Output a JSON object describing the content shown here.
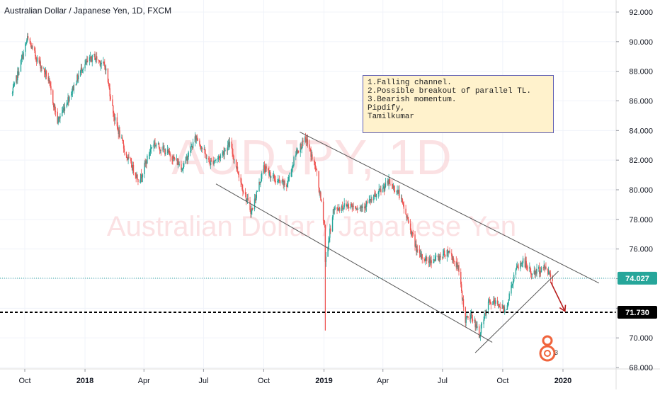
{
  "title": "Australian Dollar / Japanese Yen, 1D, FXCM",
  "watermark": {
    "symbol": "AUDJPY, 1D",
    "name": "Australian Dollar / Japanese Yen"
  },
  "note_lines": [
    "1.Falling channel.",
    "2.Possible breakout of parallel TL.",
    "3.Bearish momentum.",
    "",
    "Pipdify,",
    "Tamilkumar"
  ],
  "logo_badge": "3",
  "colors": {
    "up": "#26a69a",
    "down": "#ef5350",
    "current_line": "#26a69a",
    "level_line": "#000000",
    "trendline": "#555555",
    "arrow": "#b71c1c",
    "note_bg": "#fff2cc",
    "note_border": "#5f5fb4"
  },
  "chart_data": {
    "type": "candlestick",
    "title": "Australian Dollar / Japanese Yen, 1D, FXCM",
    "xlabel": "",
    "ylabel": "",
    "ylim": [
      68.0,
      93.0
    ],
    "y_ticks": [
      "92.000",
      "90.000",
      "88.000",
      "86.000",
      "84.000",
      "82.000",
      "80.000",
      "78.000",
      "76.000",
      "74.000",
      "72.000",
      "70.000",
      "68.000"
    ],
    "x_ticks": [
      {
        "label": "Oct",
        "date": "2017-10-01"
      },
      {
        "label": "2018",
        "date": "2018-01-01"
      },
      {
        "label": "Apr",
        "date": "2018-04-01"
      },
      {
        "label": "Jul",
        "date": "2018-07-01"
      },
      {
        "label": "Oct",
        "date": "2018-10-01"
      },
      {
        "label": "2019",
        "date": "2019-01-01"
      },
      {
        "label": "Apr",
        "date": "2019-04-01"
      },
      {
        "label": "Jul",
        "date": "2019-07-01"
      },
      {
        "label": "Oct",
        "date": "2019-10-01"
      },
      {
        "label": "2020",
        "date": "2020-01-01"
      }
    ],
    "x_range": [
      "2017-09-12",
      "2020-03-06"
    ],
    "price_path": [
      [
        "2017-09-12",
        86.5
      ],
      [
        "2017-09-25",
        88.6
      ],
      [
        "2017-10-05",
        90.2
      ],
      [
        "2017-10-20",
        88.8
      ],
      [
        "2017-11-05",
        87.6
      ],
      [
        "2017-11-20",
        84.6
      ],
      [
        "2017-12-10",
        86.5
      ],
      [
        "2017-12-28",
        88.3
      ],
      [
        "2018-01-15",
        89.0
      ],
      [
        "2018-02-01",
        88.3
      ],
      [
        "2018-02-15",
        84.8
      ],
      [
        "2018-03-05",
        82.3
      ],
      [
        "2018-03-25",
        80.6
      ],
      [
        "2018-04-15",
        83.2
      ],
      [
        "2018-05-10",
        82.4
      ],
      [
        "2018-05-30",
        81.5
      ],
      [
        "2018-06-20",
        83.6
      ],
      [
        "2018-07-10",
        81.8
      ],
      [
        "2018-07-25",
        82.2
      ],
      [
        "2018-08-10",
        83.1
      ],
      [
        "2018-09-01",
        79.8
      ],
      [
        "2018-09-12",
        78.5
      ],
      [
        "2018-10-01",
        81.5
      ],
      [
        "2018-10-20",
        80.6
      ],
      [
        "2018-11-05",
        80.3
      ],
      [
        "2018-11-20",
        82.6
      ],
      [
        "2018-12-05",
        83.4
      ],
      [
        "2018-12-20",
        81.3
      ],
      [
        "2019-01-02",
        77.6
      ],
      [
        "2019-01-03",
        75.1
      ],
      [
        "2019-01-15",
        78.6
      ],
      [
        "2019-02-05",
        79.0
      ],
      [
        "2019-02-25",
        78.8
      ],
      [
        "2019-03-15",
        79.3
      ],
      [
        "2019-04-10",
        80.5
      ],
      [
        "2019-04-25",
        79.8
      ],
      [
        "2019-05-10",
        77.8
      ],
      [
        "2019-05-25",
        75.6
      ],
      [
        "2019-06-10",
        75.2
      ],
      [
        "2019-06-25",
        75.4
      ],
      [
        "2019-07-10",
        75.9
      ],
      [
        "2019-07-25",
        74.7
      ],
      [
        "2019-08-05",
        71.2
      ],
      [
        "2019-08-15",
        71.5
      ],
      [
        "2019-08-26",
        70.2
      ],
      [
        "2019-09-10",
        72.4
      ],
      [
        "2019-09-25",
        72.3
      ],
      [
        "2019-10-05",
        71.8
      ],
      [
        "2019-10-20",
        74.5
      ],
      [
        "2019-11-01",
        75.2
      ],
      [
        "2019-11-15",
        74.3
      ],
      [
        "2019-12-05",
        74.8
      ],
      [
        "2019-12-16",
        74.03
      ]
    ],
    "current_price": "74.027",
    "level_price": "71.730",
    "channel": {
      "upper": [
        [
          "2018-11-25",
          83.9
        ],
        [
          "2020-02-25",
          73.7
        ]
      ],
      "lower": [
        [
          "2018-07-20",
          80.4
        ],
        [
          "2019-09-15",
          69.7
        ]
      ],
      "breakout_trendline": [
        [
          "2019-08-20",
          69.0
        ],
        [
          "2019-12-25",
          74.5
        ]
      ]
    },
    "projection_arrow": [
      [
        "2019-12-13",
        73.8
      ],
      [
        "2020-01-04",
        71.8
      ]
    ],
    "grid": true
  }
}
